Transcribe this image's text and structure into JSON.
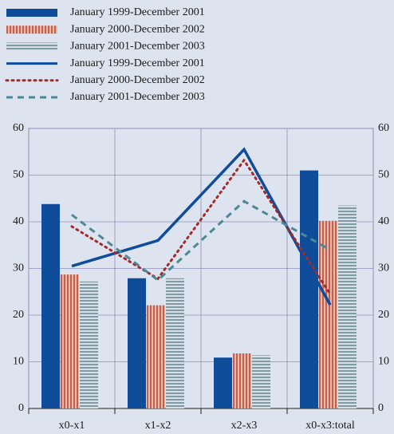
{
  "chart_data": {
    "type": "bar",
    "categories": [
      "x0-x1",
      "x1-x2",
      "x2-x3",
      "x0-x3:total"
    ],
    "series": [
      {
        "name": "January 1999-December 2001",
        "kind": "bar",
        "color": "#0f4c9a",
        "pattern": "solid",
        "values": [
          43.8,
          27.9,
          10.9,
          51.0
        ]
      },
      {
        "name": "January 2000-December 2002",
        "kind": "bar",
        "color": "#c0604e",
        "pattern": "vertical",
        "values": [
          28.7,
          22.1,
          11.8,
          40.2
        ]
      },
      {
        "name": "January 2001-December 2003",
        "kind": "bar",
        "color": "#7f9aa6",
        "pattern": "horizontal",
        "values": [
          27.2,
          27.9,
          11.4,
          43.5
        ]
      },
      {
        "name": "January 1999-December 2001",
        "kind": "line",
        "color": "#0f4c9a",
        "style": "solid",
        "values": [
          30.5,
          36,
          55.5,
          22.2
        ]
      },
      {
        "name": "January 2000-December 2002",
        "kind": "line",
        "color": "#a32a2a",
        "style": "dotted",
        "values": [
          39,
          27.8,
          53.2,
          24.5
        ]
      },
      {
        "name": "January 2001-December 2003",
        "kind": "line",
        "color": "#4a8a94",
        "style": "dashed",
        "values": [
          41.5,
          27.5,
          44.4,
          34
        ]
      }
    ],
    "ylim": [
      0,
      60
    ],
    "yticks": [
      0,
      10,
      20,
      30,
      40,
      50,
      60
    ],
    "y2lim": [
      0,
      60
    ],
    "y2ticks": [
      0,
      10,
      20,
      30,
      40,
      50,
      60
    ],
    "grid": true,
    "legend": "top-left"
  }
}
